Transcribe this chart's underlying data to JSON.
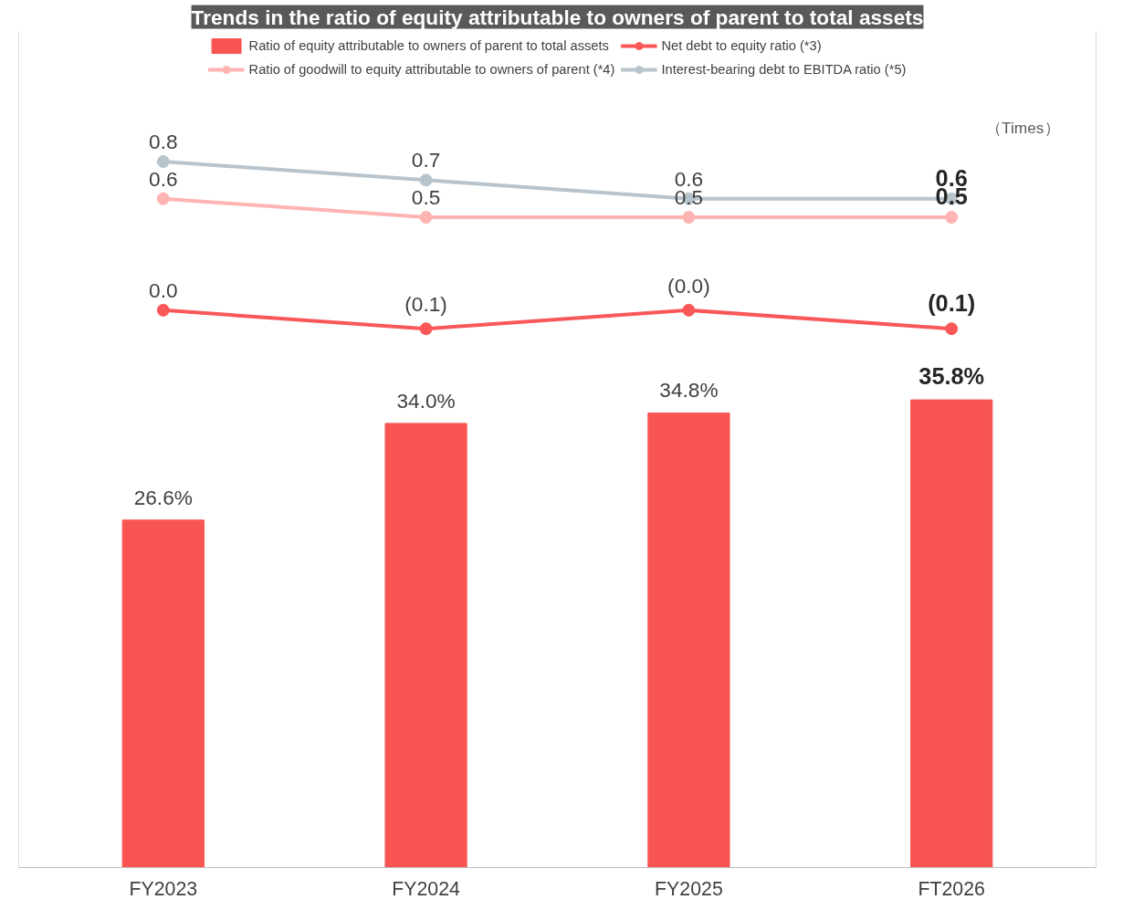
{
  "chart_data": {
    "type": "bar",
    "title": "Trends in the ratio of equity attributable to owners of parent to total assets",
    "categories": [
      "FY2023",
      "FY2024",
      "FY2025",
      "FT2026"
    ],
    "annotations": [
      "（Times）"
    ],
    "ylim": [
      0,
      64
    ],
    "y2lim": [
      -3.0,
      1.5
    ],
    "legend": "top",
    "marker": "circle",
    "grid": false,
    "tick_labels": "x",
    "series": [
      {
        "name": "Ratio of equity attributable to owners of parent to total assets",
        "color": "#f85552",
        "values": [
          26.6,
          34.0,
          34.8,
          35.8
        ],
        "value_labels": [
          "26.6%",
          "34.0%",
          "34.8%",
          "35.8%"
        ]
      },
      {
        "name": "Net debt to equity ratio (*3)",
        "type": "line",
        "axis": "y2",
        "color": "#fa5858",
        "values": [
          0.0,
          -0.1,
          -0.0,
          -0.1
        ],
        "value_labels": [
          "0.0",
          "(0.1)",
          "(0.0)",
          "(0.1)"
        ]
      },
      {
        "name": "Ratio of goodwill to equity attributable to owners of parent (*4)",
        "type": "line",
        "axis": "y2",
        "color": "#ffb3b3",
        "values": [
          0.6,
          0.5,
          0.5,
          0.5
        ],
        "value_labels": [
          "0.6",
          "0.5",
          "0.5",
          "0.5"
        ]
      },
      {
        "name": "Interest-bearing debt to EBITDA ratio (*5)",
        "type": "line",
        "axis": "y2",
        "color": "#b8c4cc",
        "values": [
          0.8,
          0.7,
          0.6,
          0.6
        ],
        "value_labels": [
          "0.8",
          "0.7",
          "0.6",
          "0.6"
        ]
      }
    ]
  }
}
